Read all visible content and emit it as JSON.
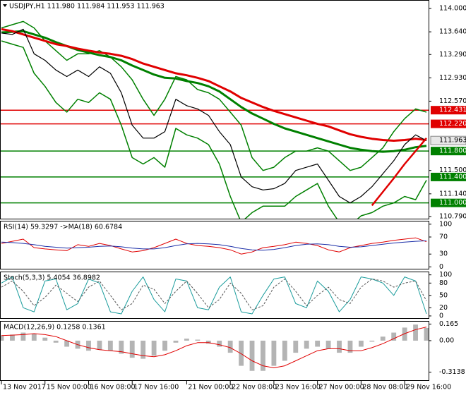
{
  "chart_data": [
    {
      "type": "line",
      "title": "USDJPY,H1 111.980 111.984 111.953 111.963",
      "ylim": [
        110.746,
        114.131
      ],
      "yticks": [
        {
          "value": 114,
          "label": "114.000"
        },
        {
          "value": 113.64,
          "label": "113.640"
        },
        {
          "value": 113.29,
          "label": "113.290"
        },
        {
          "value": 112.93,
          "label": "112.930"
        },
        {
          "value": 112.57,
          "label": "112.570"
        },
        {
          "value": 111.5,
          "label": "111.500"
        },
        {
          "value": 111.14,
          "label": "111.140"
        },
        {
          "value": 110.79,
          "label": "110.790"
        }
      ],
      "levels": [
        {
          "value": 112.431,
          "color": "#e00000"
        },
        {
          "value": 112.22,
          "label": "112.220",
          "color": "#e00000"
        },
        {
          "value": 111.8,
          "label": "111.800",
          "color": "#008000"
        },
        {
          "value": 111.4,
          "label": "111.400",
          "color": "#008000"
        },
        {
          "value": 111,
          "label": "111.000",
          "color": "#008000"
        }
      ],
      "last_price": 111.963,
      "series": [
        {
          "color": "#008000",
          "width": 1.5,
          "values": [
            113.7,
            113.75,
            113.8,
            113.7,
            113.5,
            113.35,
            113.2,
            113.3,
            113.3,
            113.35,
            113.25,
            113.1,
            112.9,
            112.6,
            112.35,
            112.6,
            112.95,
            112.9,
            112.75,
            112.7,
            112.6,
            112.4,
            112.2,
            111.7,
            111.5,
            111.55,
            111.7,
            111.8,
            111.8,
            111.85,
            111.8,
            111.65,
            111.5,
            111.55,
            111.7,
            111.85,
            112.1,
            112.3,
            112.45,
            112.4
          ]
        },
        {
          "color": "#008000",
          "width": 1.5,
          "values": [
            113.5,
            113.45,
            113.4,
            113.0,
            112.8,
            112.55,
            112.4,
            112.6,
            112.55,
            112.7,
            112.6,
            112.2,
            111.7,
            111.6,
            111.7,
            111.55,
            112.15,
            112.05,
            112.0,
            111.9,
            111.6,
            111.1,
            110.7,
            110.85,
            110.95,
            110.95,
            110.95,
            111.1,
            111.2,
            111.3,
            110.95,
            110.7,
            110.65,
            110.8,
            110.85,
            110.95,
            111.0,
            111.1,
            111.05,
            111.35
          ]
        },
        {
          "color": "#008000",
          "width": 3,
          "values": [
            113.63,
            113.64,
            113.65,
            113.6,
            113.55,
            113.48,
            113.42,
            113.36,
            113.32,
            113.28,
            113.25,
            113.2,
            113.12,
            113.05,
            112.98,
            112.93,
            112.92,
            112.88,
            112.85,
            112.8,
            112.72,
            112.6,
            112.48,
            112.38,
            112.3,
            112.22,
            112.15,
            112.1,
            112.05,
            112.0,
            111.95,
            111.9,
            111.85,
            111.82,
            111.8,
            111.79,
            111.8,
            111.82,
            111.86,
            111.88
          ]
        },
        {
          "color": "#e00000",
          "width": 3,
          "values": [
            113.68,
            113.65,
            113.6,
            113.55,
            113.5,
            113.45,
            113.42,
            113.38,
            113.35,
            113.32,
            113.3,
            113.27,
            113.22,
            113.15,
            113.1,
            113.05,
            113.0,
            112.97,
            112.93,
            112.88,
            112.8,
            112.72,
            112.62,
            112.55,
            112.48,
            112.42,
            112.37,
            112.32,
            112.27,
            112.22,
            112.18,
            112.12,
            112.06,
            112.02,
            111.99,
            111.97,
            111.96,
            111.97,
            111.99,
            111.97
          ]
        },
        {
          "color": "#000000",
          "width": 1.2,
          "values": [
            113.62,
            113.6,
            113.68,
            113.3,
            113.2,
            113.05,
            112.95,
            113.05,
            112.95,
            113.1,
            113.0,
            112.7,
            112.2,
            112.0,
            112.0,
            112.1,
            112.6,
            112.5,
            112.45,
            112.35,
            112.1,
            111.9,
            111.4,
            111.25,
            111.2,
            111.22,
            111.3,
            111.5,
            111.55,
            111.6,
            111.35,
            111.1,
            111.0,
            111.1,
            111.25,
            111.45,
            111.65,
            111.9,
            112.05,
            111.96
          ]
        },
        {
          "color": "#e00000",
          "width": 2.5,
          "values": [
            null,
            null,
            null,
            null,
            null,
            null,
            null,
            null,
            null,
            null,
            null,
            null,
            null,
            null,
            null,
            null,
            null,
            null,
            null,
            null,
            null,
            null,
            null,
            null,
            null,
            null,
            null,
            null,
            null,
            null,
            null,
            null,
            null,
            null,
            110.96,
            111.17,
            111.38,
            111.6,
            111.8,
            112.0
          ]
        }
      ]
    },
    {
      "type": "line",
      "title": "RSI(14) 59.3297 ->MA(18) 60.6784",
      "ylim": [
        -6,
        108
      ],
      "yticks": [
        100,
        70,
        30,
        0
      ],
      "series": [
        {
          "color": "#e00000",
          "width": 1,
          "values": [
            55,
            60,
            65,
            45,
            42,
            40,
            38,
            52,
            48,
            55,
            50,
            42,
            35,
            38,
            45,
            55,
            65,
            55,
            50,
            48,
            45,
            40,
            30,
            35,
            45,
            48,
            52,
            58,
            55,
            50,
            40,
            35,
            45,
            50,
            55,
            58,
            62,
            65,
            68,
            59
          ]
        },
        {
          "color": "#1c2fa8",
          "width": 1,
          "values": [
            58,
            57,
            55,
            52,
            48,
            46,
            44,
            45,
            46,
            48,
            49,
            47,
            44,
            42,
            42,
            45,
            50,
            54,
            55,
            54,
            52,
            48,
            43,
            40,
            39,
            41,
            45,
            50,
            53,
            54,
            52,
            48,
            46,
            47,
            50,
            53,
            56,
            58,
            60,
            61
          ]
        }
      ]
    },
    {
      "type": "line",
      "title": "Stoch(5,3,3) 5.4054 36.8982",
      "ylim": [
        -7,
        108
      ],
      "yticks": [
        100,
        80,
        50,
        20,
        0
      ],
      "series": [
        {
          "color": "#1a9c9c",
          "width": 1,
          "values": [
            80,
            95,
            20,
            10,
            85,
            90,
            15,
            30,
            90,
            80,
            10,
            5,
            60,
            95,
            40,
            10,
            90,
            85,
            20,
            15,
            70,
            95,
            10,
            5,
            50,
            90,
            95,
            30,
            20,
            85,
            60,
            10,
            40,
            95,
            90,
            80,
            50,
            95,
            85,
            5
          ]
        },
        {
          "color": "#555555",
          "width": 1,
          "dash": true,
          "values": [
            70,
            85,
            60,
            25,
            45,
            75,
            55,
            35,
            70,
            85,
            50,
            15,
            30,
            75,
            65,
            30,
            60,
            85,
            55,
            20,
            40,
            80,
            55,
            15,
            25,
            70,
            90,
            60,
            25,
            50,
            70,
            40,
            30,
            70,
            90,
            85,
            70,
            80,
            85,
            37
          ]
        }
      ]
    },
    {
      "type": "macd",
      "title": "MACD(12,26,9) 0.1258 0.1361",
      "ylim": [
        -0.4,
        0.196
      ],
      "yticks": [
        0.165,
        {
          "value": 0,
          "label": "0.00"
        },
        -0.3138
      ],
      "categories": [
        "13 Nov 2017",
        null,
        null,
        null,
        "15 Nov 00:00",
        null,
        null,
        null,
        "16 Nov 08:00",
        null,
        null,
        null,
        "17 Nov 16:00",
        null,
        null,
        null,
        null,
        "21 Nov 00:00",
        null,
        null,
        null,
        "22 Nov 08:00",
        null,
        null,
        null,
        "23 Nov 16:00",
        null,
        null,
        null,
        "27 Nov 00:00",
        null,
        null,
        null,
        "28 Nov 08:00",
        null,
        null,
        null,
        "29 Nov 16:00",
        null,
        null
      ],
      "series": [
        {
          "type": "bar",
          "color": "#b4b4b4",
          "values": [
            0.05,
            0.06,
            0.08,
            0.07,
            0.03,
            -0.02,
            -0.06,
            -0.08,
            -0.1,
            -0.09,
            -0.1,
            -0.13,
            -0.17,
            -0.18,
            -0.15,
            -0.1,
            -0.02,
            0.02,
            0.01,
            -0.03,
            -0.06,
            -0.12,
            -0.25,
            -0.3,
            -0.3,
            -0.25,
            -0.2,
            -0.12,
            -0.08,
            -0.06,
            -0.08,
            -0.12,
            -0.12,
            -0.06,
            -0.01,
            0.04,
            0.08,
            0.13,
            0.16,
            0.126
          ]
        },
        {
          "type": "line",
          "color": "#e00000",
          "width": 1,
          "values": [
            0.05,
            0.055,
            0.06,
            0.07,
            0.06,
            0.04,
            0.0,
            -0.04,
            -0.07,
            -0.09,
            -0.1,
            -0.11,
            -0.13,
            -0.15,
            -0.16,
            -0.14,
            -0.1,
            -0.05,
            -0.02,
            -0.02,
            -0.04,
            -0.07,
            -0.13,
            -0.2,
            -0.25,
            -0.27,
            -0.25,
            -0.2,
            -0.15,
            -0.1,
            -0.08,
            -0.08,
            -0.1,
            -0.1,
            -0.07,
            -0.03,
            0.02,
            0.07,
            0.11,
            0.136
          ]
        }
      ]
    }
  ]
}
